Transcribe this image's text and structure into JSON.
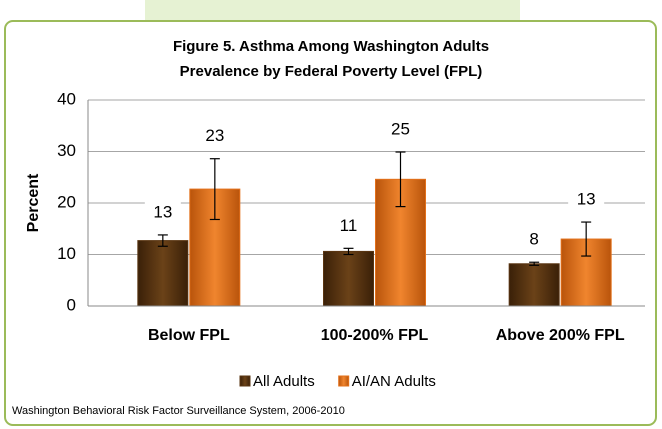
{
  "chart_data": {
    "type": "bar",
    "title": "Figure 5. Asthma Among Washington Adults",
    "subtitle": "Prevalence by Federal Poverty Level (FPL)",
    "y_label": "Percent",
    "categories": [
      "Below FPL",
      "100-200% FPL",
      "Above 200% FPL"
    ],
    "series": [
      {
        "name": "All Adults",
        "color": "#5a3512",
        "values": [
          12.7,
          10.6,
          8.2
        ],
        "errors": [
          1.1,
          0.6,
          0.3
        ],
        "value_labels": [
          "13",
          "11",
          "8"
        ]
      },
      {
        "name": "AI/AN Adults",
        "color": "#e3701a",
        "values": [
          22.7,
          24.6,
          13.0
        ],
        "errors": [
          5.9,
          5.3,
          3.3
        ],
        "value_labels": [
          "23",
          "25",
          "13"
        ]
      }
    ],
    "ylim": [
      0,
      40
    ],
    "yticks": [
      0,
      10,
      20,
      30,
      40
    ],
    "grid": true,
    "legend": "bottom",
    "note": "Washington Behavioral Risk Factor Surveillance System, 2006-2010"
  }
}
